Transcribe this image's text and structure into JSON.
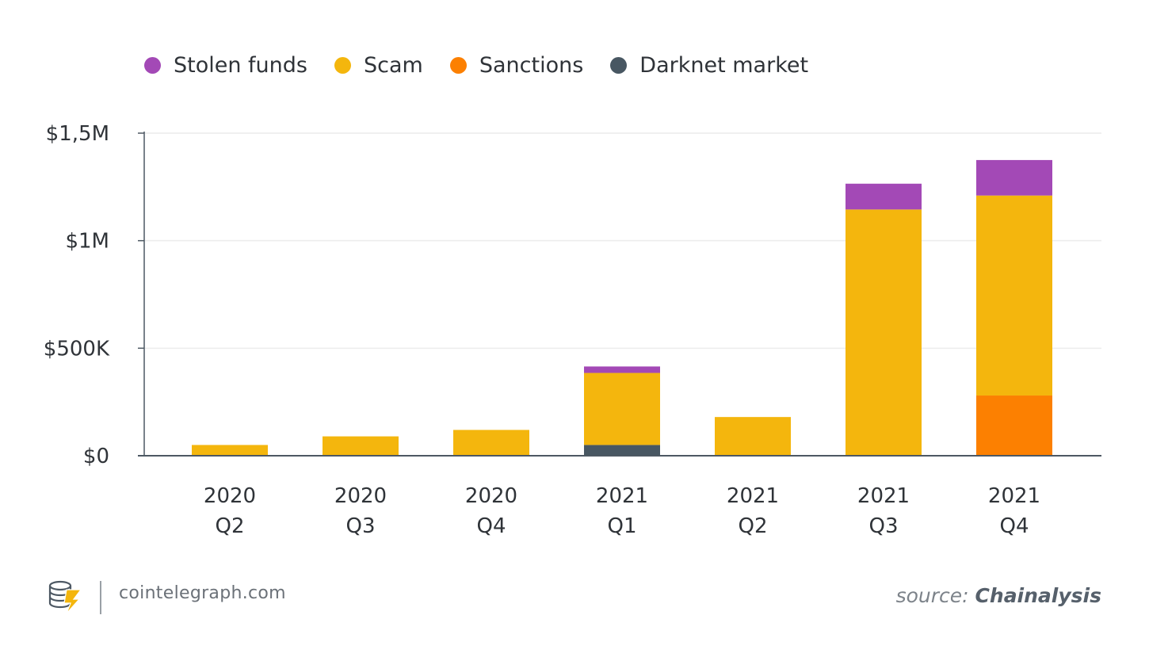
{
  "colors": {
    "stolen_funds": "#a349b6",
    "scam": "#f4b60d",
    "sanctions": "#fc8001",
    "darknet_market": "#485762",
    "axis": "#4d5863",
    "grid": "#ececec",
    "text": "#2f3338"
  },
  "legend": [
    {
      "label": "Stolen funds",
      "color": "#a349b6"
    },
    {
      "label": "Scam",
      "color": "#f4b60d"
    },
    {
      "label": "Sanctions",
      "color": "#fc8001"
    },
    {
      "label": "Darknet market",
      "color": "#485762"
    }
  ],
  "chart_data": {
    "type": "bar",
    "stacked": true,
    "categories": [
      [
        "2020",
        "Q2"
      ],
      [
        "2020",
        "Q3"
      ],
      [
        "2020",
        "Q4"
      ],
      [
        "2021",
        "Q1"
      ],
      [
        "2021",
        "Q2"
      ],
      [
        "2021",
        "Q3"
      ],
      [
        "2021",
        "Q4"
      ]
    ],
    "series": [
      {
        "name": "Darknet market",
        "color": "#485762",
        "values": [
          0,
          0,
          0,
          50000,
          0,
          0,
          0
        ]
      },
      {
        "name": "Sanctions",
        "color": "#fc8001",
        "values": [
          0,
          0,
          0,
          0,
          0,
          0,
          280000
        ]
      },
      {
        "name": "Scam",
        "color": "#f4b60d",
        "values": [
          50000,
          90000,
          120000,
          335000,
          180000,
          1145000,
          930000
        ]
      },
      {
        "name": "Stolen funds",
        "color": "#a349b6",
        "values": [
          0,
          0,
          0,
          30000,
          0,
          120000,
          165000
        ]
      }
    ],
    "ylim": [
      0,
      1500000
    ],
    "yticks": [
      {
        "value": 0,
        "label": "$0"
      },
      {
        "value": 500000,
        "label": "$500K"
      },
      {
        "value": 1000000,
        "label": "$1M"
      },
      {
        "value": 1500000,
        "label": "$1,5M"
      }
    ],
    "grid": true,
    "legend_position": "top-left",
    "title": "",
    "xlabel": "",
    "ylabel": ""
  },
  "footer": {
    "site": "cointelegraph.com",
    "source_prefix": "source: ",
    "source_name": "Chainalysis"
  }
}
